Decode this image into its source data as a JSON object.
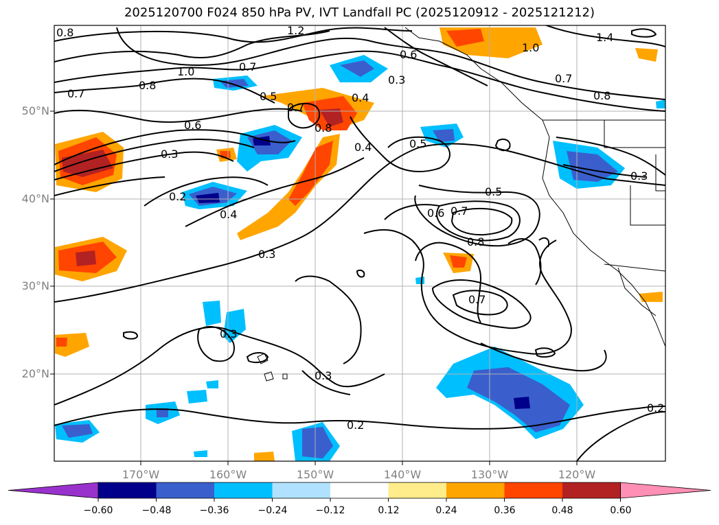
{
  "title": "2025120700 F024 850 hPa PV, IVT Landfall PC (2025120912 - 2025121212)",
  "lat_labels": [
    "50°N",
    "40°N",
    "30°N",
    "20°N"
  ],
  "lon_labels": [
    "170°W",
    "160°W",
    "150°W",
    "140°W",
    "130°W",
    "120°W"
  ],
  "contour_labels": [
    "0.8",
    "1.2",
    "1.0",
    "0.7",
    "0.8",
    "0.7",
    "0.5",
    "0.7",
    "0.6",
    "0.3",
    "0.4",
    "0.6",
    "0.8",
    "0.4",
    "0.5",
    "0.3",
    "0.2",
    "0.4",
    "0.3",
    "0.5",
    "0.6",
    "0.7",
    "0.8",
    "0.7",
    "0.3",
    "0.3",
    "0.2",
    "1.4",
    "1.0",
    "0.7",
    "0.8",
    "0.3",
    "0.2"
  ],
  "colorbar": {
    "ticks": [
      "−0.60",
      "−0.48",
      "−0.36",
      "−0.24",
      "−0.12",
      "0.12",
      "0.24",
      "0.36",
      "0.48",
      "0.60"
    ],
    "colors": [
      "#9932cc",
      "#00008b",
      "#3a5fcd",
      "#00bfff",
      "#b0e2ff",
      "#ffffff",
      "#ffec8b",
      "#ffa500",
      "#ff4500",
      "#b22222",
      "#ff8fb4"
    ]
  },
  "fill_colors": {
    "blue_light": "#00bfff",
    "blue_mid": "#3a5fcd",
    "blue_dark": "#00008b",
    "orange": "#ffa500",
    "red_orange": "#ff4500",
    "dark_red": "#b22222"
  }
}
